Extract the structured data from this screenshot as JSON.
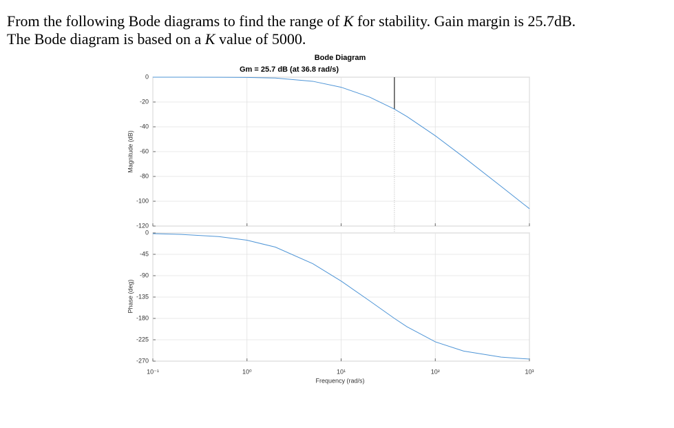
{
  "question": [
    [
      "From the following Bode diagrams to find the range of ",
      "K",
      " for stability. Gain margin is 25.7dB."
    ],
    [
      "The Bode diagram is based on a ",
      "K",
      " value of 5000."
    ]
  ],
  "chart_data": [
    {
      "type": "line",
      "title": "Bode Diagram",
      "subtitle": "Gm = 25.7 dB (at 36.8 rad/s)",
      "ylabel": "Magnitude (dB)",
      "x": [
        0.1,
        0.2,
        0.5,
        1,
        2,
        5,
        10,
        20,
        36.8,
        50,
        100,
        200,
        500,
        1000
      ],
      "series": [
        {
          "color": "#4d94d6",
          "values": [
            0,
            -0.01,
            -0.05,
            -0.18,
            -0.7,
            -3.3,
            -8.1,
            -16.0,
            -25.7,
            -31.7,
            -47.2,
            -64.4,
            -88.0,
            -106.0
          ]
        }
      ],
      "gain_margin": {
        "frequency": 36.8,
        "magnitude": -25.7
      },
      "xlim": [
        0.1,
        1000
      ],
      "log_x": true,
      "ylim": [
        -120,
        0
      ],
      "yticks": [
        0,
        -20,
        -40,
        -60,
        -80,
        -100,
        -120
      ],
      "grid": true
    },
    {
      "type": "line",
      "ylabel": "Phase (deg)",
      "xlabel": "Frequency (rad/s)",
      "x": [
        0.1,
        0.2,
        0.5,
        1,
        2,
        5,
        10,
        20,
        36.8,
        50,
        100,
        200,
        500,
        1000
      ],
      "series": [
        {
          "color": "#4d94d6",
          "values": [
            -1.5,
            -3.1,
            -7.7,
            -15.3,
            -29.8,
            -64.7,
            -101.3,
            -142.8,
            -180,
            -197.5,
            -229.3,
            -248.8,
            -261.4,
            -265.7
          ]
        }
      ],
      "xlim": [
        0.1,
        1000
      ],
      "log_x": true,
      "xticks": [
        {
          "value": 0.1,
          "label": "10⁻¹"
        },
        {
          "value": 1,
          "label": "10⁰"
        },
        {
          "value": 10,
          "label": "10¹"
        },
        {
          "value": 100,
          "label": "10²"
        },
        {
          "value": 1000,
          "label": "10³"
        }
      ],
      "ylim": [
        -270,
        0
      ],
      "yticks": [
        0,
        -45,
        -90,
        -135,
        -180,
        -225,
        -270
      ],
      "grid": true
    }
  ]
}
